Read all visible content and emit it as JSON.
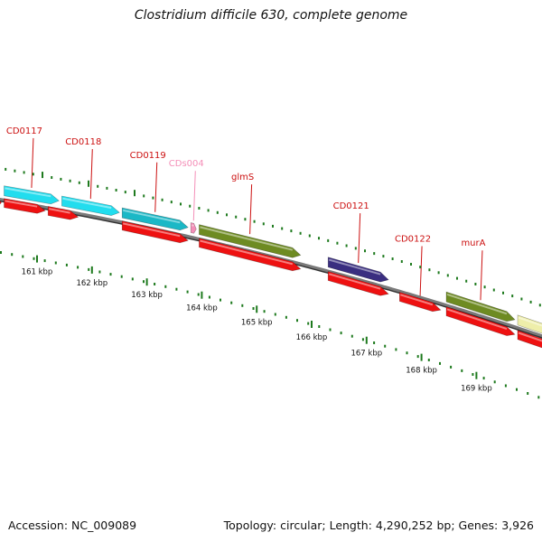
{
  "title": "Clostridium difficile 630, complete genome",
  "footer": {
    "accession": "Accession: NC_009089",
    "stats": "Topology: circular; Length: 4,290,252 bp; Genes: 3,926"
  },
  "axis": {
    "unit": "kbp",
    "ticks": [
      {
        "kbp": 161,
        "label": "161 kbp"
      },
      {
        "kbp": 162,
        "label": "162 kbp"
      },
      {
        "kbp": 163,
        "label": "163 kbp"
      },
      {
        "kbp": 164,
        "label": "164 kbp"
      },
      {
        "kbp": 165,
        "label": "165 kbp"
      },
      {
        "kbp": 166,
        "label": "166 kbp"
      },
      {
        "kbp": 167,
        "label": "167 kbp"
      },
      {
        "kbp": 168,
        "label": "168 kbp"
      },
      {
        "kbp": 169,
        "label": "169 kbp"
      }
    ]
  },
  "colors": {
    "cds_red": "#ee1111",
    "label_red": "#cc1111",
    "label_pink": "#f48fb8",
    "tick_green": "#1e7a1e",
    "backbone_gray": "#7a7a7a"
  },
  "features": [
    {
      "name": "CD0117",
      "row": "gene",
      "start_kbp": 160.4,
      "end_kbp": 161.4,
      "color": "#22ddee",
      "label_color": "#cc1111",
      "labeled": true
    },
    {
      "name": "CD0118",
      "row": "gene",
      "start_kbp": 161.45,
      "end_kbp": 162.5,
      "color": "#22ddee",
      "label_color": "#cc1111",
      "labeled": true
    },
    {
      "name": "CD0119",
      "row": "gene",
      "start_kbp": 162.55,
      "end_kbp": 163.75,
      "color": "#1bb8c6",
      "label_color": "#cc1111",
      "labeled": true
    },
    {
      "name": "CDs004",
      "row": "gene",
      "start_kbp": 163.8,
      "end_kbp": 163.9,
      "color": "#f48fb8",
      "label_color": "#f48fb8",
      "labeled": true
    },
    {
      "name": "glmS",
      "row": "gene",
      "start_kbp": 163.95,
      "end_kbp": 165.8,
      "color": "#6e8b22",
      "label_color": "#cc1111",
      "labeled": true
    },
    {
      "name": "CD0121",
      "row": "gene",
      "start_kbp": 166.3,
      "end_kbp": 167.4,
      "color": "#3a2e80",
      "label_color": "#cc1111",
      "labeled": true
    },
    {
      "name": "CD0122",
      "row": "cds",
      "start_kbp": 167.6,
      "end_kbp": 168.35,
      "color": "#ee1111",
      "label_color": "#cc1111",
      "labeled": true
    },
    {
      "name": "murA",
      "row": "gene",
      "start_kbp": 168.45,
      "end_kbp": 169.7,
      "color": "#6e8b22",
      "label_color": "#cc1111",
      "labeled": true
    },
    {
      "name": "",
      "row": "gene",
      "start_kbp": 169.75,
      "end_kbp": 170.4,
      "color": "#eeeeaa",
      "label_color": "#cc1111",
      "labeled": false
    }
  ],
  "cds": [
    {
      "start_kbp": 160.2,
      "end_kbp": 160.35
    },
    {
      "start_kbp": 160.4,
      "end_kbp": 161.15
    },
    {
      "start_kbp": 161.2,
      "end_kbp": 161.75
    },
    {
      "start_kbp": 162.55,
      "end_kbp": 163.75
    },
    {
      "start_kbp": 163.95,
      "end_kbp": 165.8
    },
    {
      "start_kbp": 166.3,
      "end_kbp": 167.4
    },
    {
      "start_kbp": 168.45,
      "end_kbp": 169.7
    },
    {
      "start_kbp": 169.75,
      "end_kbp": 170.4
    }
  ]
}
